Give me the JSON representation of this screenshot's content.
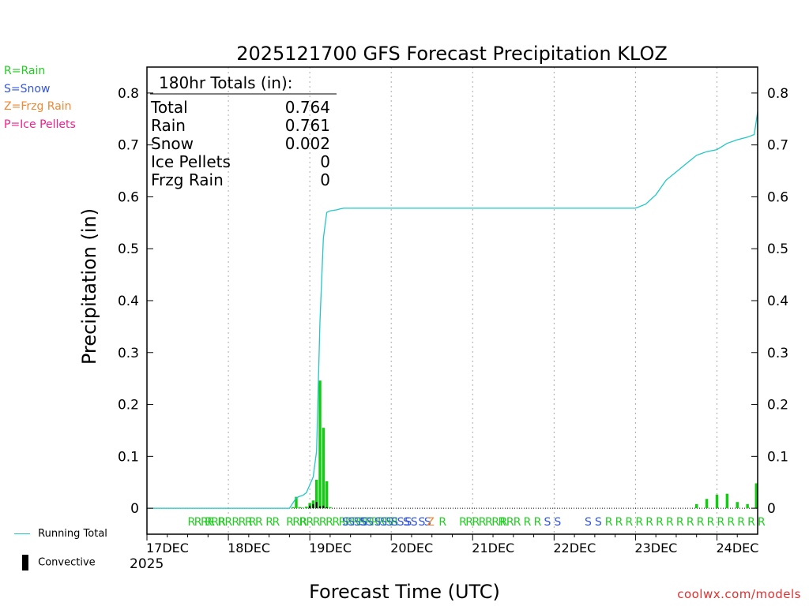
{
  "ptype_legend": [
    {
      "label": "R=Rain",
      "color": "#22cc22"
    },
    {
      "label": "S=Snow",
      "color": "#3355dd"
    },
    {
      "label": "Z=Frzg Rain",
      "color": "#ee8833"
    },
    {
      "label": "P=Ice Pellets",
      "color": "#ee2288"
    }
  ],
  "bottom_legend": {
    "running_total": "Running Total",
    "convective": "Convective",
    "running_color": "#22c7c7"
  },
  "credit": "coolwx.com/models",
  "chart_data": {
    "type": "bar",
    "title": "2025121700 GFS Forecast Precipitation KLOZ",
    "xlabel": "Forecast Time (UTC)",
    "ylabel": "Precipitation (in)",
    "ylim": [
      -0.05,
      0.85
    ],
    "yticks": [
      0,
      0.1,
      0.2,
      0.3,
      0.4,
      0.5,
      0.6,
      0.7,
      0.8
    ],
    "ytick_labels": [
      "0",
      "0.1",
      "0.2",
      "0.3",
      "0.4",
      "0.5",
      "0.6",
      "0.7",
      "0.8"
    ],
    "x_range_hours": [
      0,
      180
    ],
    "x_ticks": [
      {
        "hour": 0,
        "label": "17DEC"
      },
      {
        "hour": 24,
        "label": "18DEC"
      },
      {
        "hour": 48,
        "label": "19DEC"
      },
      {
        "hour": 72,
        "label": "20DEC"
      },
      {
        "hour": 96,
        "label": "21DEC"
      },
      {
        "hour": 120,
        "label": "22DEC"
      },
      {
        "hour": 144,
        "label": "23DEC"
      },
      {
        "hour": 168,
        "label": "24DEC"
      }
    ],
    "year_label": "2025",
    "totals_box": {
      "header": "180hr Totals (in):",
      "rows": [
        {
          "label": "Total",
          "value": "0.764"
        },
        {
          "label": "Rain",
          "value": "0.761"
        },
        {
          "label": "Snow",
          "value": "0.002"
        },
        {
          "label": "Ice Pellets",
          "value": "0"
        },
        {
          "label": "Frzg Rain",
          "value": "0"
        }
      ]
    },
    "series": [
      {
        "name": "Precipitation",
        "color": "#11cc11",
        "hours": [
          43,
          44,
          45,
          46,
          47,
          48,
          49,
          50,
          51,
          52,
          53,
          54,
          162,
          165,
          168,
          171,
          174,
          177,
          180
        ],
        "values": [
          0.002,
          0.022,
          0.002,
          0.001,
          0.003,
          0.01,
          0.015,
          0.055,
          0.246,
          0.155,
          0.052,
          0.002,
          0.008,
          0.018,
          0.026,
          0.028,
          0.012,
          0.008,
          0.048
        ]
      },
      {
        "name": "Convective",
        "color": "#000000",
        "hours": [
          48,
          49,
          50,
          51,
          52,
          53
        ],
        "values": [
          0.005,
          0.008,
          0.012,
          0.004,
          0.005,
          0.002
        ]
      },
      {
        "name": "Running Total",
        "color": "#22c7c7",
        "hours": [
          0,
          42,
          43,
          44,
          45,
          46,
          47,
          48,
          49,
          50,
          51,
          52,
          53,
          54,
          55,
          56,
          57,
          58,
          60,
          141,
          144,
          147,
          150,
          153,
          156,
          159,
          162,
          165,
          168,
          171,
          174,
          177,
          179,
          180
        ],
        "values": [
          0,
          0,
          0.01,
          0.02,
          0.023,
          0.025,
          0.03,
          0.045,
          0.06,
          0.11,
          0.36,
          0.52,
          0.57,
          0.573,
          0.574,
          0.575,
          0.577,
          0.578,
          0.578,
          0.578,
          0.578,
          0.586,
          0.604,
          0.632,
          0.648,
          0.664,
          0.68,
          0.687,
          0.691,
          0.703,
          0.71,
          0.715,
          0.72,
          0.764
        ]
      }
    ],
    "ptype_markers": [
      {
        "hour": 12,
        "text": "RRRR",
        "type": "R"
      },
      {
        "hour": 17,
        "text": "RRR",
        "type": "R"
      },
      {
        "hour": 21,
        "text": "RR",
        "type": "R"
      },
      {
        "hour": 25,
        "text": "RRR",
        "type": "R"
      },
      {
        "hour": 30,
        "text": "RR",
        "type": "R"
      },
      {
        "hour": 35,
        "text": "RR",
        "type": "R"
      },
      {
        "hour": 41,
        "text": "RRR",
        "type": "R"
      },
      {
        "hour": 45,
        "text": "RRRRRRRRRRRRRRR",
        "type": "R"
      },
      {
        "hour": 57.5,
        "text": "SSSS",
        "type": "S"
      },
      {
        "hour": 63,
        "text": "SS",
        "type": "S"
      },
      {
        "hour": 67,
        "text": "SSS",
        "type": "S"
      },
      {
        "hour": 72,
        "text": "SSS",
        "type": "S"
      },
      {
        "hour": 76,
        "text": "SS",
        "type": "S"
      },
      {
        "hour": 80,
        "text": "SS",
        "type": "S"
      },
      {
        "hour": 82.5,
        "text": "Z",
        "type": "Z"
      },
      {
        "hour": 86,
        "text": "R",
        "type": "R"
      },
      {
        "hour": 92,
        "text": "RRRRRRR",
        "type": "R"
      },
      {
        "hour": 104,
        "text": "RR",
        "type": "R"
      },
      {
        "hour": 108,
        "text": "R",
        "type": "R"
      },
      {
        "hour": 111,
        "text": "R",
        "type": "R"
      },
      {
        "hour": 114,
        "text": "R",
        "type": "R"
      },
      {
        "hour": 117,
        "text": "S",
        "type": "S"
      },
      {
        "hour": 120,
        "text": "S",
        "type": "S"
      },
      {
        "hour": 129,
        "text": "S",
        "type": "S"
      },
      {
        "hour": 132,
        "text": "S",
        "type": "S"
      },
      {
        "hour": 135,
        "text": "R",
        "type": "R"
      },
      {
        "hour": 138,
        "text": "R",
        "type": "R"
      },
      {
        "hour": 141,
        "text": "R",
        "type": "R"
      },
      {
        "hour": 144,
        "text": "R",
        "type": "R"
      },
      {
        "hour": 147,
        "text": "R",
        "type": "R"
      },
      {
        "hour": 150,
        "text": "R",
        "type": "R"
      },
      {
        "hour": 153,
        "text": "R",
        "type": "R"
      },
      {
        "hour": 156,
        "text": "R",
        "type": "R"
      },
      {
        "hour": 159,
        "text": "R",
        "type": "R"
      },
      {
        "hour": 162,
        "text": "R",
        "type": "R"
      },
      {
        "hour": 165,
        "text": "R",
        "type": "R"
      },
      {
        "hour": 168,
        "text": "R",
        "type": "R"
      },
      {
        "hour": 171,
        "text": "R",
        "type": "R"
      },
      {
        "hour": 174,
        "text": "R",
        "type": "R"
      },
      {
        "hour": 177,
        "text": "R",
        "type": "R"
      },
      {
        "hour": 180,
        "text": "R",
        "type": "R"
      }
    ],
    "ptype_colors": {
      "R": "#22cc22",
      "S": "#3355dd",
      "Z": "#ee8833",
      "P": "#ee2288"
    }
  }
}
